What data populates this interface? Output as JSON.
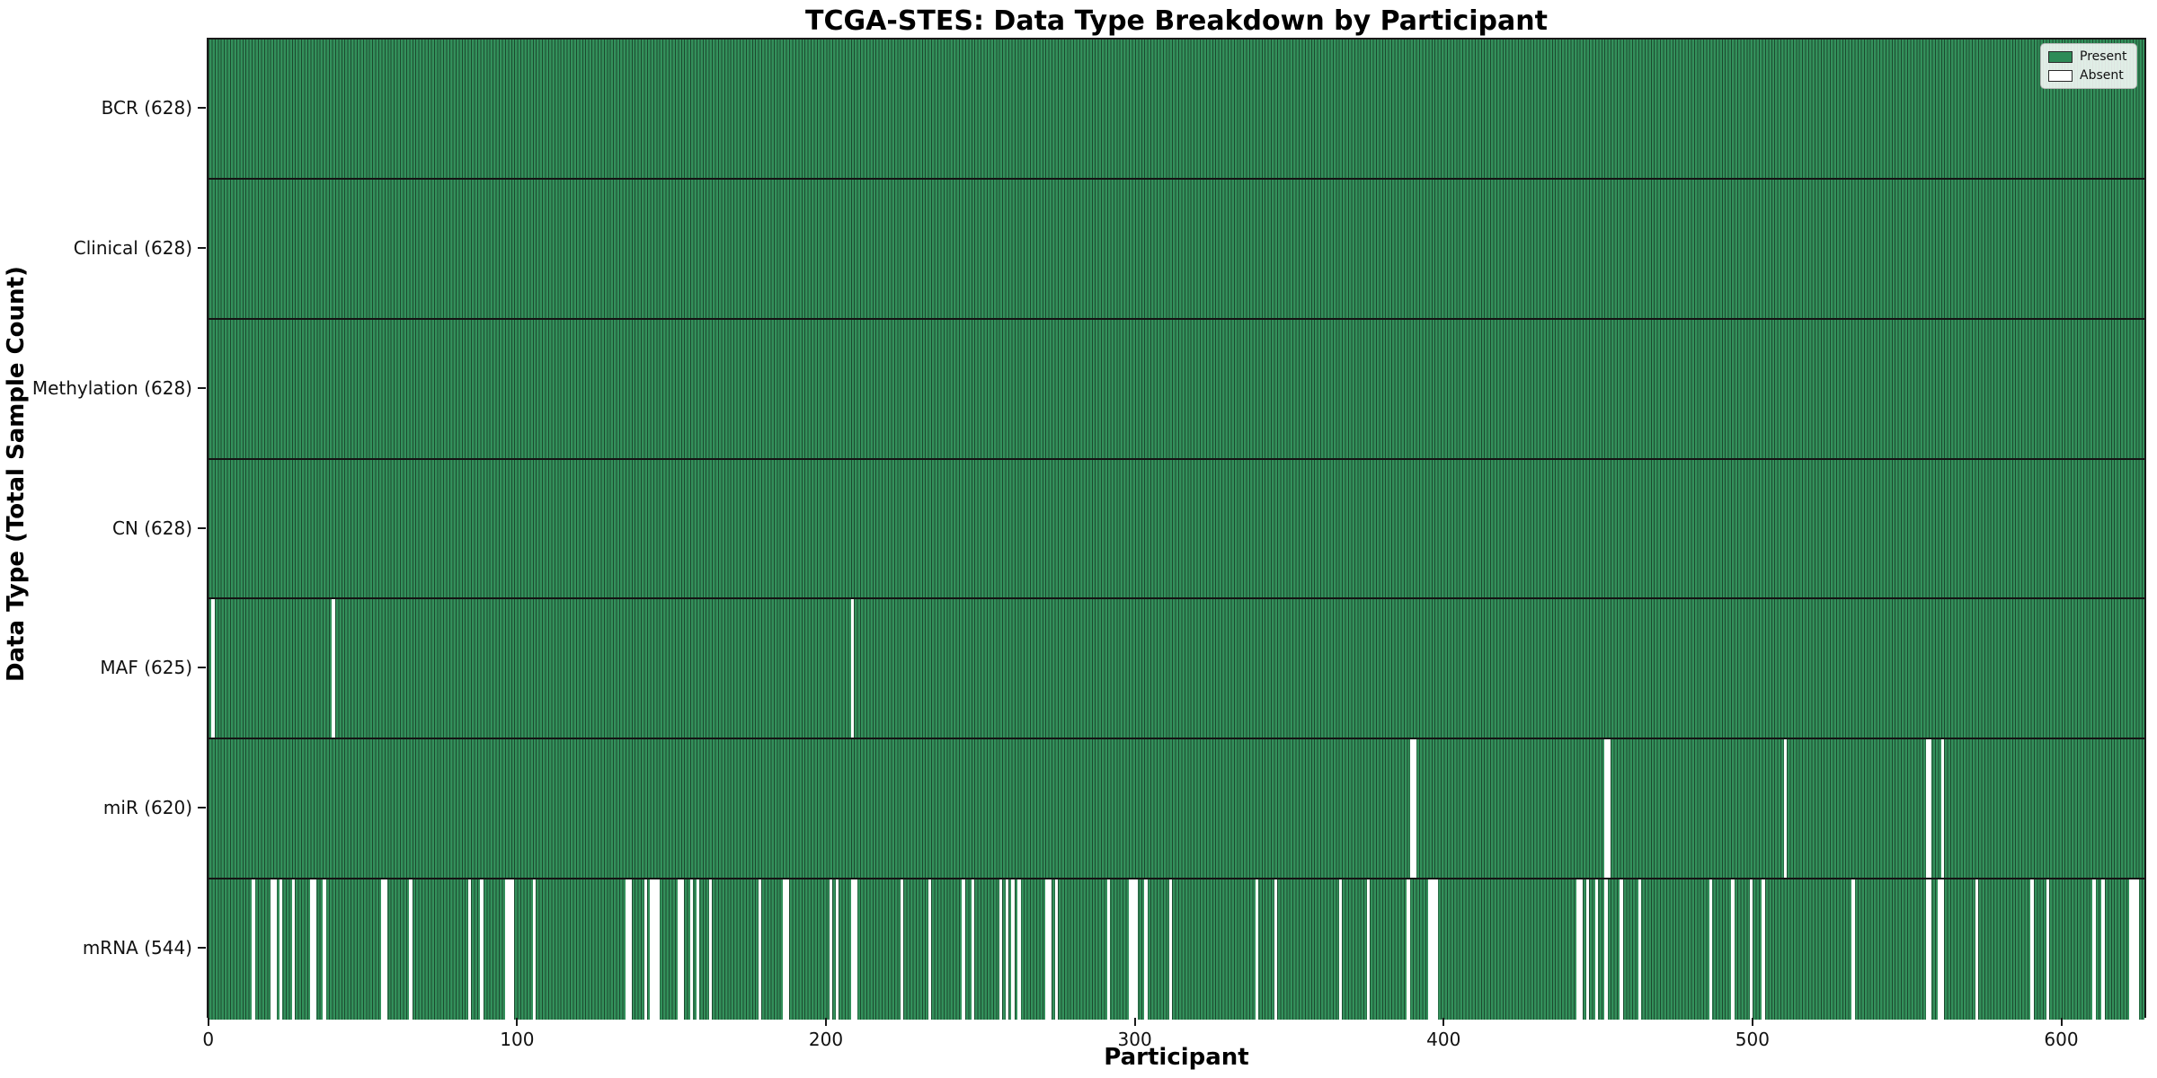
{
  "title": "TCGA-STES: Data Type Breakdown by Participant",
  "xlabel": "Participant",
  "ylabel": "Data Type (Total Sample Count)",
  "legend": {
    "present_label": "Present",
    "absent_label": "Absent"
  },
  "colors": {
    "present": "#33905b",
    "bar_edge": "#1c4a2f",
    "absent": "#ffffff",
    "separator": "#141414",
    "legend_present_swatch": "#2e8b57",
    "legend_swatch_border": "#2a2a2a"
  },
  "chart_data": {
    "type": "heatmap",
    "title": "TCGA-STES: Data Type Breakdown by Participant",
    "xlabel": "Participant",
    "ylabel": "Data Type (Total Sample Count)",
    "n_participants": 628,
    "x_ticks": [
      0,
      100,
      200,
      300,
      400,
      500,
      600
    ],
    "legend_entries": [
      "Present",
      "Absent"
    ],
    "legend_position": "upper right",
    "rows": [
      {
        "name": "BCR",
        "label": "BCR (628)",
        "present_count": 628,
        "absent_indices": []
      },
      {
        "name": "Clinical",
        "label": "Clinical (628)",
        "present_count": 628,
        "absent_indices": []
      },
      {
        "name": "Methylation",
        "label": "Methylation (628)",
        "present_count": 628,
        "absent_indices": []
      },
      {
        "name": "CN",
        "label": "CN (628)",
        "present_count": 628,
        "absent_indices": []
      },
      {
        "name": "MAF",
        "label": "MAF (625)",
        "present_count": 625,
        "absent_indices": [
          1,
          40,
          208
        ]
      },
      {
        "name": "miR",
        "label": "miR (620)",
        "present_count": 620,
        "absent_indices": [
          389,
          390,
          452,
          453,
          510,
          556,
          557,
          561
        ]
      },
      {
        "name": "mRNA",
        "label": "mRNA (544)",
        "present_count": 544,
        "absent_indices": [
          14,
          20,
          21,
          23,
          27,
          33,
          34,
          37,
          56,
          57,
          65,
          84,
          88,
          96,
          97,
          98,
          105,
          135,
          136,
          141,
          143,
          144,
          145,
          152,
          153,
          156,
          158,
          162,
          178,
          186,
          187,
          201,
          203,
          208,
          209,
          224,
          233,
          244,
          247,
          256,
          258,
          260,
          262,
          271,
          272,
          274,
          291,
          298,
          299,
          300,
          303,
          311,
          339,
          345,
          366,
          375,
          388,
          395,
          396,
          397,
          443,
          444,
          446,
          449,
          452,
          457,
          463,
          486,
          493,
          499,
          503,
          532,
          556,
          557,
          560,
          561,
          572,
          590,
          595,
          610,
          613,
          622,
          623,
          624
        ]
      }
    ]
  }
}
